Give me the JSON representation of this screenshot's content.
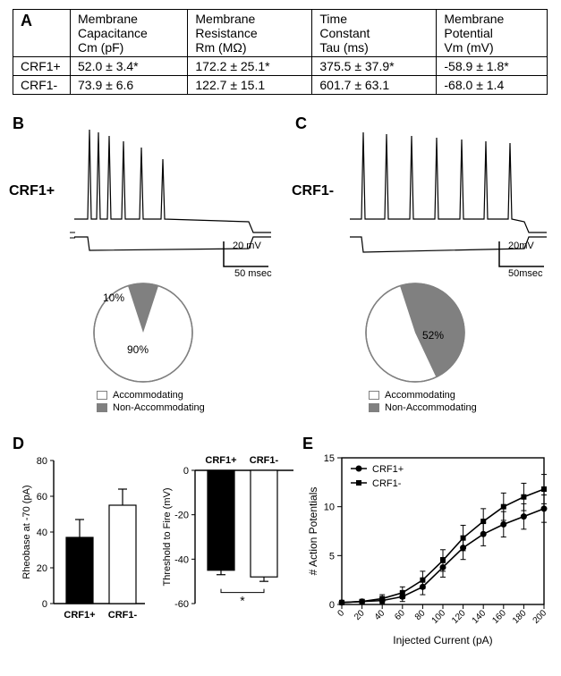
{
  "colors": {
    "black": "#000000",
    "white": "#ffffff",
    "gray_fill": "#808080",
    "gray_stroke": "#808080",
    "axis": "#000000"
  },
  "fonts": {
    "label_pt": 18,
    "celltype_pt": 16,
    "table_pt": 14,
    "tick_pt": 11
  },
  "panelA": {
    "label": "A",
    "columns": [
      "Membrane\nCapacitance\nCm (pF)",
      "Membrane\nResistance\nRm (MΩ)",
      "Time\nConstant\nTau (ms)",
      "Membrane\nPotential\nVm (mV)"
    ],
    "rows": [
      {
        "name": "CRF1+",
        "cells": [
          "52.0 ± 3.4*",
          "172.2 ± 25.1*",
          "375.5 ± 37.9*",
          "-58.9 ± 1.8*"
        ]
      },
      {
        "name": "CRF1-",
        "cells": [
          "73.9 ± 6.6",
          "122.7 ± 15.1",
          "601.7 ± 63.1",
          "-68.0 ± 1.4"
        ]
      }
    ]
  },
  "panelB": {
    "label": "B",
    "celltype": "CRF1+",
    "scale_v": "20 mV",
    "scale_t": "50 msec",
    "pie": {
      "accommodating": 90,
      "non_accommodating": 10
    },
    "legend": {
      "acc": "Accommodating",
      "nonacc": "Non-Accommodating"
    }
  },
  "panelC": {
    "label": "C",
    "celltype": "CRF1-",
    "scale_v": "20mV",
    "scale_t": "50msec",
    "pie": {
      "accommodating": 52,
      "non_accommodating": 48
    },
    "legend": {
      "acc": "Accommodating",
      "nonacc": "Non-Accommodating"
    }
  },
  "panelD": {
    "label": "D",
    "left": {
      "ylabel": "Rheobase at -70 (pA)",
      "yticks": [
        0,
        20,
        40,
        60,
        80
      ],
      "categories": [
        "CRF1+",
        "CRF1-"
      ],
      "bars": [
        {
          "value": 37,
          "err": 10,
          "fill": "#000000"
        },
        {
          "value": 55,
          "err": 9,
          "fill": "#ffffff"
        }
      ],
      "ylim": [
        0,
        80
      ]
    },
    "right": {
      "ylabel": "Threshold to Fire (mV)",
      "yticks": [
        0,
        -20,
        -40,
        -60
      ],
      "header": [
        "CRF1+",
        "CRF1-"
      ],
      "bars": [
        {
          "value": -45,
          "err": 2,
          "fill": "#000000"
        },
        {
          "value": -48,
          "err": 2,
          "fill": "#ffffff"
        }
      ],
      "ylim": [
        -60,
        0
      ],
      "sig": "*"
    }
  },
  "panelE": {
    "label": "E",
    "xlabel": "Injected Current (pA)",
    "ylabel": "# Action Potentials",
    "xticks": [
      0,
      20,
      40,
      60,
      80,
      100,
      120,
      140,
      160,
      180,
      200
    ],
    "yticks": [
      0,
      5,
      10,
      15
    ],
    "xlim": [
      0,
      200
    ],
    "ylim": [
      0,
      15
    ],
    "series": [
      {
        "name": "CRF1+",
        "marker": "circle",
        "color": "#000000",
        "y": [
          0.2,
          0.3,
          0.4,
          0.8,
          1.8,
          3.8,
          5.8,
          7.2,
          8.2,
          9.0,
          9.8
        ],
        "err": [
          0.2,
          0.2,
          0.3,
          0.5,
          0.8,
          1.0,
          1.2,
          1.2,
          1.3,
          1.3,
          1.4
        ]
      },
      {
        "name": "CRF1-",
        "marker": "square",
        "color": "#000000",
        "y": [
          0.2,
          0.3,
          0.6,
          1.2,
          2.5,
          4.5,
          6.8,
          8.5,
          10.0,
          11.0,
          11.8
        ],
        "err": [
          0.2,
          0.2,
          0.4,
          0.6,
          0.9,
          1.1,
          1.3,
          1.3,
          1.4,
          1.4,
          1.5
        ]
      }
    ]
  }
}
